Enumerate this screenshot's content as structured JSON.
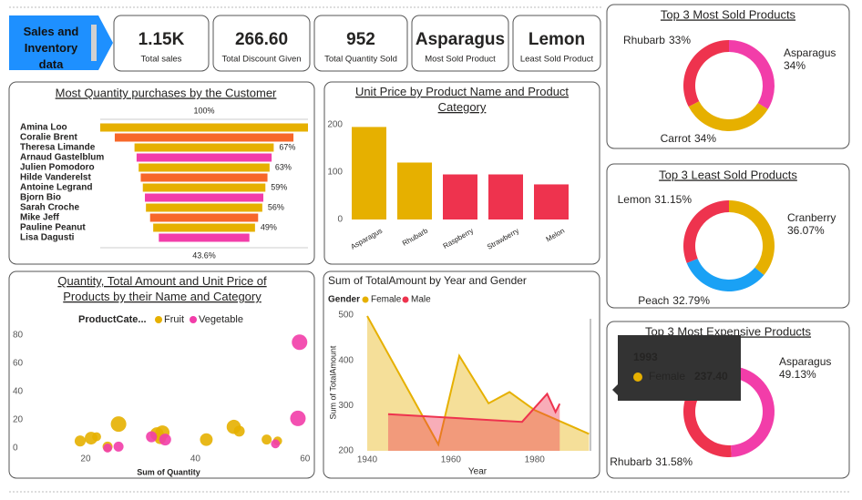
{
  "header": {
    "button": "Sales and Inventory data"
  },
  "cards": [
    {
      "value": "1.15K",
      "label": "Total sales"
    },
    {
      "value": "266.60",
      "label": "Total Discount Given"
    },
    {
      "value": "952",
      "label": "Total Quantity Sold"
    },
    {
      "value": "Asparagus",
      "label": "Most Sold Product"
    },
    {
      "value": "Lemon",
      "label": "Least Sold Product"
    }
  ],
  "chart_data": [
    {
      "type": "funnel",
      "title": "Most Quantity purchases by the Customer",
      "categories": [
        "Amina Loo",
        "Coralie Brent",
        "Theresa Limande",
        "Arnaud Gastelblum",
        "Julien Pomodoro",
        "Hilde Vanderelst",
        "Antoine Legrand",
        "Bjorn Bio",
        "Sarah Croche",
        "Mike Jeff",
        "Pauline Peanut",
        "Lisa Dagusti"
      ],
      "values": [
        100,
        86,
        67,
        65,
        63,
        61,
        59,
        57,
        56,
        52,
        49,
        43.6
      ],
      "value_labels": [
        "100%",
        null,
        "67%",
        null,
        "63%",
        null,
        "59%",
        null,
        "56%",
        null,
        "49%",
        "43.6%"
      ],
      "colors": [
        "#e6b000",
        "#f7672a",
        "#e6b000",
        "#f23da9",
        "#e6b000",
        "#f7672a",
        "#e6b000",
        "#f23da9",
        "#e6b000",
        "#f7672a",
        "#e6b000",
        "#f23da9"
      ]
    },
    {
      "type": "bar",
      "title": "Unit Price by Product Name and Product Category",
      "categories": [
        "Asparagus",
        "Rhubarb",
        "Raspberry",
        "Strawberry",
        "Melon"
      ],
      "values": [
        195,
        120,
        95,
        95,
        74
      ],
      "colors": [
        "#e6b000",
        "#e6b000",
        "#ee334e",
        "#ee334e",
        "#ee334e"
      ],
      "ylim": [
        0,
        215
      ],
      "yticks": [
        0,
        100,
        200
      ]
    },
    {
      "type": "scatter",
      "title": "Quantity, Total Amount and Unit Price of Products by their Name and Category",
      "legend_title": "ProductCate...",
      "x_label": "Sum of Quantity",
      "series": [
        {
          "name": "Fruit",
          "color": "#e6b000",
          "x": [
            19,
            21,
            22,
            26,
            24,
            33,
            34,
            33.6,
            42,
            47,
            48,
            53,
            55
          ],
          "values": [
            5,
            7,
            8,
            17,
            1,
            10,
            11,
            7,
            6,
            15,
            12,
            6,
            5
          ],
          "sizes": [
            30,
            40,
            20,
            60,
            25,
            45,
            50,
            35,
            40,
            50,
            30,
            25,
            20
          ]
        },
        {
          "name": "Vegetable",
          "color": "#f23da9",
          "x": [
            59,
            58.7,
            24,
            26,
            34.5,
            54.6,
            32
          ],
          "values": [
            75,
            21,
            0,
            1,
            6,
            3,
            8
          ],
          "sizes": [
            60,
            60,
            20,
            25,
            35,
            20,
            30
          ]
        }
      ],
      "xlim": [
        6,
        61
      ],
      "xticks": [
        20,
        40,
        60
      ],
      "ylim": [
        -3,
        82
      ],
      "yticks": [
        0,
        20,
        40,
        60,
        80
      ]
    },
    {
      "type": "area",
      "title": "Sum of TotalAmount by Year and Gender",
      "legend_title": "Gender",
      "x_label": "Year",
      "y_label": "Sum of TotalAmount",
      "series": [
        {
          "name": "Female",
          "color": "#e6b000",
          "x": [
            1940,
            1957,
            1962,
            1969,
            1974,
            1980,
            1993
          ],
          "values": [
            498,
            214,
            410,
            305,
            330,
            290,
            237.4
          ],
          "value_labels": [
            null,
            null,
            null,
            null,
            null,
            null,
            "237.40"
          ]
        },
        {
          "name": "Male",
          "color": "#ee334e",
          "x": [
            1945,
            1977,
            1983,
            1985,
            1986
          ],
          "values": [
            281,
            264,
            326,
            286,
            304
          ]
        }
      ],
      "xlim": [
        1940,
        1994
      ],
      "xticks": [
        1940,
        1960,
        1980
      ],
      "ylim": [
        200,
        500
      ],
      "yticks": [
        200,
        300,
        400,
        500
      ]
    },
    {
      "type": "donut",
      "title": "Top 3 Most Sold Products",
      "categories": [
        "Asparagus",
        "Carrot",
        "Rhubarb"
      ],
      "values": [
        34,
        34,
        33
      ],
      "value_labels": [
        "34%",
        "34%",
        "33%"
      ],
      "colors": [
        "#f23da9",
        "#e6b000",
        "#ee334e"
      ]
    },
    {
      "type": "donut",
      "title": "Top 3 Least Sold Products",
      "categories": [
        "Cranberry",
        "Peach",
        "Lemon"
      ],
      "values": [
        36.07,
        32.79,
        31.15
      ],
      "value_labels": [
        "36.07%",
        "32.79%",
        "31.15%"
      ],
      "colors": [
        "#e6b000",
        "#1aa1f5",
        "#ee334e"
      ]
    },
    {
      "type": "donut",
      "title": "Top 3 Most Expensive Products",
      "categories": [
        "Asparagus",
        "Rhubarb",
        null
      ],
      "values": [
        49.13,
        31.58,
        19.29
      ],
      "value_labels": [
        "49.13%",
        "31.58%",
        null
      ],
      "colors": [
        "#f23da9",
        "#ee334e",
        "#f7672a"
      ]
    }
  ]
}
